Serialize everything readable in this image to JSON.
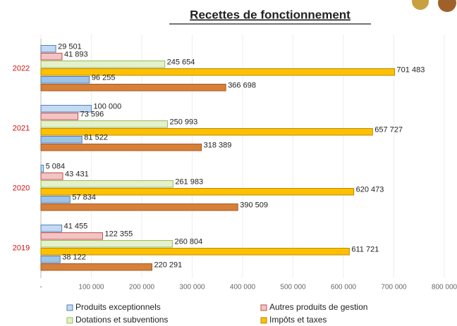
{
  "chart_data": {
    "type": "hbar",
    "title": "Recettes de fonctionnement",
    "categories": [
      "2022",
      "2021",
      "2020",
      "2019"
    ],
    "series": [
      {
        "name": "Produits exceptionnels",
        "color": "#c5d9f1",
        "edge": "#4f81bd",
        "values": [
          29501,
          100000,
          5084,
          41455
        ],
        "value_labels": [
          "29 501",
          "100 000",
          "5 084",
          "41 455"
        ]
      },
      {
        "name": "Autres produits de gestion",
        "color": "#f2c4c4",
        "edge": "#c0504d",
        "values": [
          41893,
          73596,
          43431,
          122355
        ],
        "value_labels": [
          "41 893",
          "73 596",
          "43 431",
          "122 355"
        ]
      },
      {
        "name": "Dotations et subventions",
        "color": "#e4f1cc",
        "edge": "#9bbb59",
        "values": [
          245654,
          250993,
          261983,
          260804
        ],
        "value_labels": [
          "245 654",
          "250 993",
          "261 983",
          "260 804"
        ]
      },
      {
        "name": "Impôts et taxes",
        "color": "#ffc000",
        "edge": "#b88a00",
        "values": [
          701483,
          657727,
          620473,
          611721
        ],
        "value_labels": [
          "701 483",
          "657 727",
          "620 473",
          "611 721"
        ]
      },
      {
        "color": "#9dc3e6",
        "edge": "#4f81bd",
        "values": [
          96255,
          81522,
          57834,
          38122
        ],
        "value_labels": [
          "96 255",
          "81 522",
          "57 834",
          "38 122"
        ]
      },
      {
        "color": "#d6803a",
        "edge": "#a85a20",
        "values": [
          366698,
          318389,
          390509,
          220291
        ],
        "value_labels": [
          "366 698",
          "318 389",
          "390 509",
          "220 291"
        ]
      }
    ],
    "xlim": [
      0,
      800000
    ],
    "xticks": [
      {
        "value": 0,
        "label": "-"
      },
      {
        "value": 100000,
        "label": "100 000"
      },
      {
        "value": 200000,
        "label": "200 000"
      },
      {
        "value": 300000,
        "label": "300 000"
      },
      {
        "value": 400000,
        "label": "400 000"
      },
      {
        "value": 500000,
        "label": "500 000"
      },
      {
        "value": 600000,
        "label": "600 000"
      },
      {
        "value": 700000,
        "label": "700 000"
      },
      {
        "value": 800000,
        "label": "800 000"
      }
    ],
    "grid": true
  }
}
